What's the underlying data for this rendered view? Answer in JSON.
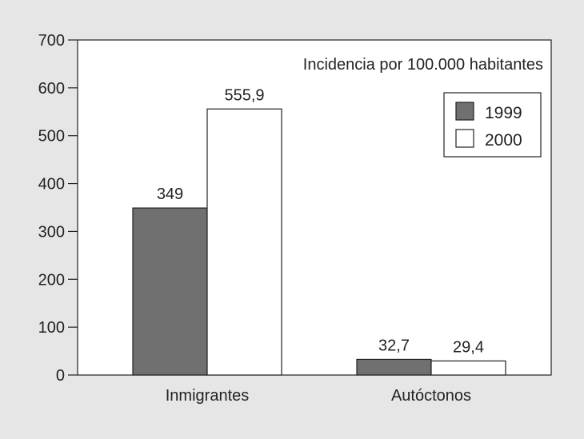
{
  "chart_data": {
    "type": "bar",
    "title": "Incidencia por 100.000 habitantes",
    "xlabel": "",
    "ylabel": "",
    "categories": [
      "Inmigrantes",
      "Autóctonos"
    ],
    "series": [
      {
        "name": "1999",
        "values": [
          349,
          32.7
        ],
        "labels": [
          "349",
          "32,7"
        ],
        "color": "#707070"
      },
      {
        "name": "2000",
        "values": [
          555.9,
          29.4
        ],
        "labels": [
          "555,9",
          "29,4"
        ],
        "color": "#ffffff"
      }
    ],
    "ylim": [
      0,
      700
    ],
    "yticks": [
      0,
      100,
      200,
      300,
      400,
      500,
      600,
      700
    ],
    "grid": false,
    "legend_position": "top-right",
    "background_color": "#e6e6e6",
    "plot_background_color": "#ffffff"
  }
}
